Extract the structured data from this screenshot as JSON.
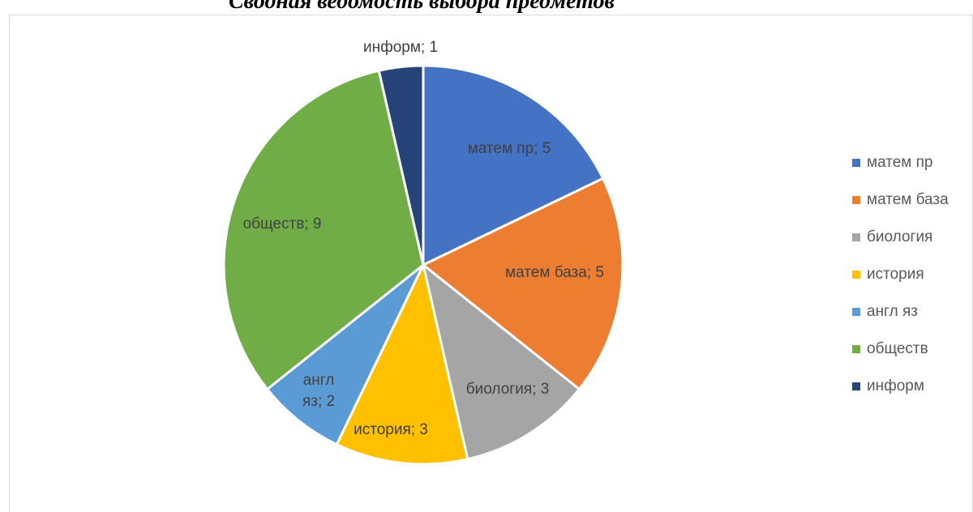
{
  "page": {
    "title": "Сводная ведомость выбора предметов"
  },
  "chart_data": {
    "type": "pie",
    "categories": [
      "матем пр",
      "матем база",
      "биология",
      "история",
      "англ яз",
      "обществ",
      "информ"
    ],
    "values": [
      5,
      5,
      3,
      3,
      2,
      9,
      1
    ],
    "colors": [
      "#4472C4",
      "#ED7D31",
      "#A5A5A5",
      "#FFC000",
      "#5B9BD5",
      "#70AD47",
      "#264478"
    ],
    "data_labels": [
      "матем пр; 5",
      "матем база; 5",
      "биология; 3",
      "история; 3",
      "англ яз; 2",
      "обществ; 9",
      "информ; 1"
    ],
    "legend_position": "right",
    "start_angle": "12 o'clock",
    "direction": "clockwise"
  }
}
